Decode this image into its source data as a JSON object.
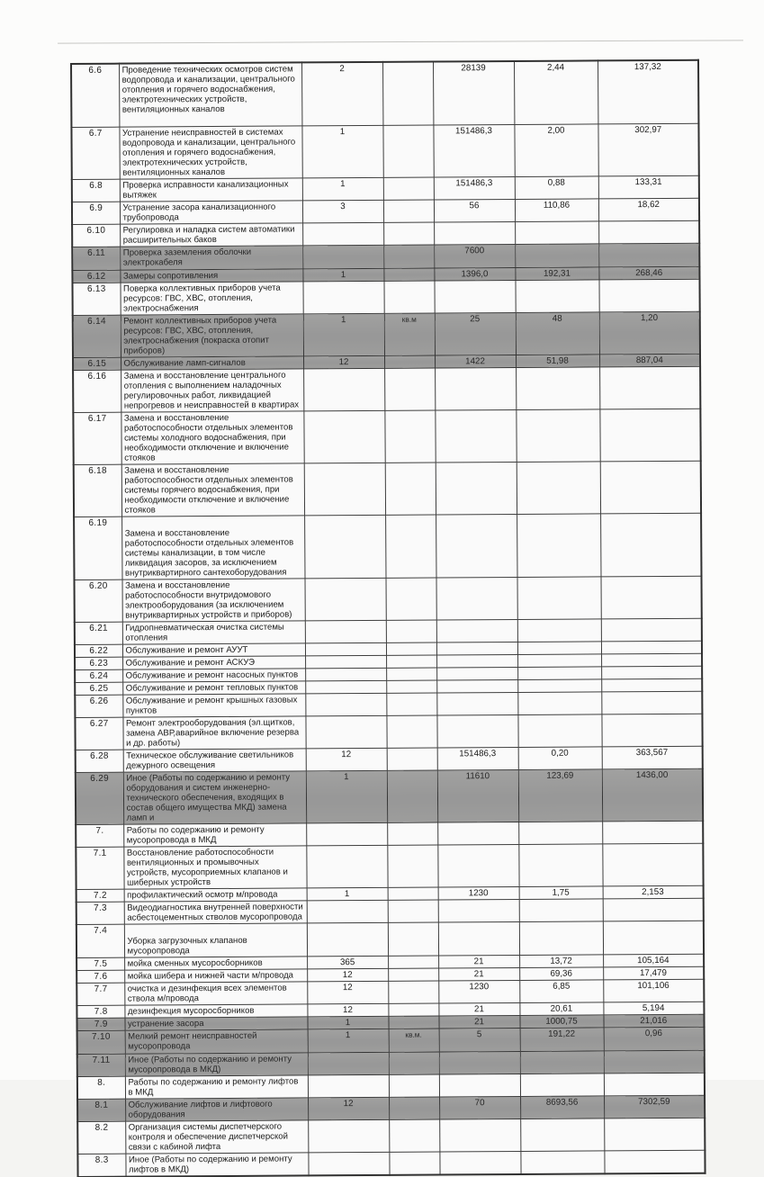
{
  "document_type": "scanned maintenance works table (МКД)",
  "colors": {
    "highlight_row": "#9c9c9c",
    "border": "#3d3d3d",
    "text": "#181818",
    "page": "#fcfcfb"
  },
  "table": {
    "columns": [
      "num",
      "desc",
      "qty",
      "unit",
      "volume",
      "rate",
      "total"
    ],
    "rows": [
      {
        "num": "6.6",
        "desc": "Проведение технических осмотров систем водопровода и канализации, центрального отопления и горячего водоснабжения, электротехнических устройств, вентиляционных каналов",
        "qty": "2",
        "unit": "",
        "volume": "28139",
        "rate": "2,44",
        "total": "137,32",
        "gray": false,
        "height": 70
      },
      {
        "num": "6.7",
        "desc": "Устранение неисправностей в системах водопровода и канализации, центрального отопления и горячего водоснабжения, электротехнических устройств, вентиляционных каналов",
        "qty": "1",
        "unit": "",
        "volume": "151486,3",
        "rate": "2,00",
        "total": "302,97",
        "gray": false,
        "height": 56
      },
      {
        "num": "6.8",
        "desc": "Проверка исправности канализационных вытяжек",
        "qty": "1",
        "unit": "",
        "volume": "151486,3",
        "rate": "0,88",
        "total": "133,31",
        "gray": false,
        "height": 23
      },
      {
        "num": "6.9",
        "desc": "Устранение засора канализационного трубопровода",
        "qty": "3",
        "unit": "",
        "volume": "56",
        "rate": "110,86",
        "total": "18,62",
        "gray": false,
        "height": 23
      },
      {
        "num": "6.10",
        "desc": "Регулировка и наладка систем автоматики расширительных баков",
        "qty": "",
        "unit": "",
        "volume": "",
        "rate": "",
        "total": "",
        "gray": false,
        "height": 23
      },
      {
        "num": "6.11",
        "desc": "Проверка заземления оболочки электрокабеля",
        "qty": "",
        "unit": "",
        "volume": "7600",
        "rate": "",
        "total": "",
        "gray": true,
        "height": 24,
        "desc_style": "desc-bottom"
      },
      {
        "num": "6.12",
        "desc": "Замеры сопротивления",
        "qty": "1",
        "unit": "",
        "volume": "1396,0",
        "rate": "192,31",
        "total": "268,46",
        "gray": true,
        "height": 12
      },
      {
        "num": "6.13",
        "desc": "Поверка коллективных приборов учета ресурсов: ГВС, ХВС, отопления, электроснабжения",
        "qty": "",
        "unit": "",
        "volume": "",
        "rate": "",
        "total": "",
        "gray": false,
        "height": 34
      },
      {
        "num": "6.14",
        "desc": "Ремонт коллективных приборов учета ресурсов: ГВС, ХВС, отопления, электроснабжения (покраска отопит приборов)",
        "qty": "1",
        "unit": "кв.м",
        "volume": "25",
        "rate": "48",
        "total": "1,20",
        "gray": true,
        "height": 34
      },
      {
        "num": "6.15",
        "desc": "Обслуживание ламп-сигналов",
        "qty": "12",
        "unit": "",
        "volume": "1422",
        "rate": "51,98",
        "total": "887,04",
        "gray": true,
        "height": 12
      },
      {
        "num": "6.16",
        "desc": "Замена и восстановление центрального отопления с выполнением наладочных регулировочных работ, ликвидацией непрогревов и неисправностей в квартирах",
        "qty": "",
        "unit": "",
        "volume": "",
        "rate": "",
        "total": "",
        "gray": false,
        "height": 45
      },
      {
        "num": "6.17",
        "desc": "Замена и восстановление работоспособности отдельных элементов системы холодного водоснабжения, при необходимости отключение и включение стояков",
        "qty": "",
        "unit": "",
        "volume": "",
        "rate": "",
        "total": "",
        "gray": false,
        "height": 45
      },
      {
        "num": "6.18",
        "desc": "Замена и восстановление работоспособности отдельных элементов системы горячего водоснабжения, при необходимости отключение и включение стояков",
        "qty": "",
        "unit": "",
        "volume": "",
        "rate": "",
        "total": "",
        "gray": false,
        "height": 45
      },
      {
        "num": "6.19",
        "desc": "Замена и восстановление работоспособности отдельных элементов системы канализации, в том числе ликвидация засоров, за исключением внутриквартирного сантехоборудования",
        "qty": "",
        "unit": "",
        "volume": "",
        "rate": "",
        "total": "",
        "gray": false,
        "height": 56,
        "desc_style": "desc-padtop"
      },
      {
        "num": "6.20",
        "desc": "Замена и восстановление работоспособности внутридомового электрооборудования (за исключением внутриквартирных устройств и приборов)",
        "qty": "",
        "unit": "",
        "volume": "",
        "rate": "",
        "total": "",
        "gray": false,
        "height": 45
      },
      {
        "num": "6.21",
        "desc": "Гидропневматическая очистка системы отопления",
        "qty": "",
        "unit": "",
        "volume": "",
        "rate": "",
        "total": "",
        "gray": false,
        "height": 23
      },
      {
        "num": "6.22",
        "desc": "Обслуживание и ремонт АУУТ",
        "qty": "",
        "unit": "",
        "volume": "",
        "rate": "",
        "total": "",
        "gray": false,
        "height": 12
      },
      {
        "num": "6.23",
        "desc": "Обслуживание и ремонт АСКУЭ",
        "qty": "",
        "unit": "",
        "volume": "",
        "rate": "",
        "total": "",
        "gray": false,
        "height": 12
      },
      {
        "num": "6.24",
        "desc": "Обслуживание и ремонт насосных пунктов",
        "qty": "",
        "unit": "",
        "volume": "",
        "rate": "",
        "total": "",
        "gray": false,
        "height": 12
      },
      {
        "num": "6.25",
        "desc": "Обслуживание и ремонт тепловых пунктов",
        "qty": "",
        "unit": "",
        "volume": "",
        "rate": "",
        "total": "",
        "gray": false,
        "height": 12
      },
      {
        "num": "6.26",
        "desc": "Обслуживание и ремонт крышных газовых пунктов",
        "qty": "",
        "unit": "",
        "volume": "",
        "rate": "",
        "total": "",
        "gray": false,
        "height": 23
      },
      {
        "num": "6.27",
        "desc": "Ремонт электрооборудования (эл.щитков, замена АВР,аварийное включение резерва и др. работы)",
        "qty": "",
        "unit": "",
        "volume": "",
        "rate": "",
        "total": "",
        "gray": false,
        "height": 34
      },
      {
        "num": "6.28",
        "desc": "Техническое обслуживание светильников дежурного освещения",
        "qty": "12",
        "unit": "",
        "volume": "151486,3",
        "rate": "0,20",
        "total": "363,567",
        "gray": false,
        "height": 23
      },
      {
        "num": "6.29",
        "desc": "Иное (Работы по содержанию и ремонту оборудования и систем инженерно-технического обеспечения, входящих в состав общего имущества МКД) замена ламп и",
        "qty": "1",
        "unit": "",
        "volume": "11610",
        "rate": "123,69",
        "total": "1436,00",
        "gray": true,
        "height": 48
      },
      {
        "num": "7.",
        "desc": "Работы по содержанию и ремонту мусоропровода в МКД",
        "qty": "",
        "unit": "",
        "volume": "",
        "rate": "",
        "total": "",
        "gray": false,
        "height": 23
      },
      {
        "num": "7.1",
        "desc": "Восстановление работоспособности вентиляционных и промывочных устройств, мусороприемных клапанов и шиберных устройств",
        "qty": "",
        "unit": "",
        "volume": "",
        "rate": "",
        "total": "",
        "gray": false,
        "height": 45
      },
      {
        "num": "7.2",
        "desc": "профилактический осмотр м/провода",
        "qty": "1",
        "unit": "",
        "volume": "1230",
        "rate": "1,75",
        "total": "2,153",
        "gray": false,
        "height": 12
      },
      {
        "num": "7.3",
        "desc": "Видеодиагностика внутренней поверхности асбестоцементных стволов мусоропровода",
        "qty": "",
        "unit": "",
        "volume": "",
        "rate": "",
        "total": "",
        "gray": false,
        "height": 23
      },
      {
        "num": "7.4",
        "desc": "Уборка загрузочных клапанов  мусоропровода",
        "qty": "",
        "unit": "",
        "volume": "",
        "rate": "",
        "total": "",
        "gray": false,
        "height": 28,
        "desc_style": "desc-padtop"
      },
      {
        "num": "7.5",
        "desc": "мойка сменных мусоросборников",
        "qty": "365",
        "unit": "",
        "volume": "21",
        "rate": "13,72",
        "total": "105,164",
        "gray": false,
        "height": 12
      },
      {
        "num": "7.6",
        "desc": "мойка шибера и нижней части м/провода",
        "qty": "12",
        "unit": "",
        "volume": "21",
        "rate": "69,36",
        "total": "17,479",
        "gray": false,
        "height": 12
      },
      {
        "num": "7.7",
        "desc": "очистка и дезинфекция всех элементов ствола м/провода",
        "qty": "12",
        "unit": "",
        "volume": "1230",
        "rate": "6,85",
        "total": "101,106",
        "gray": false,
        "height": 23
      },
      {
        "num": "7.8",
        "desc": "дезинфекция мусоросборников",
        "qty": "12",
        "unit": "",
        "volume": "21",
        "rate": "20,61",
        "total": "5,194",
        "gray": false,
        "height": 12
      },
      {
        "num": "7.9",
        "desc": "устранение засора",
        "qty": "1",
        "unit": "",
        "volume": "21",
        "rate": "1000,75",
        "total": "21,016",
        "gray": true,
        "height": 12
      },
      {
        "num": "7.10",
        "desc": "Мелкий ремонт неисправностей мусоропровода",
        "qty": "1",
        "unit": "кв.м.",
        "volume": "5",
        "rate": "191,22",
        "total": "0,96",
        "gray": true,
        "height": 26,
        "desc_style": "desc-bottom"
      },
      {
        "num": "7.11",
        "desc": "Иное (Работы по содержанию и ремонту мусоропровода в МКД)",
        "qty": "",
        "unit": "",
        "volume": "",
        "rate": "",
        "total": "",
        "gray": true,
        "height": 24
      },
      {
        "num": "8.",
        "desc": "Работы по содержанию и ремонту лифтов в МКД",
        "qty": "",
        "unit": "",
        "volume": "",
        "rate": "",
        "total": "",
        "gray": false,
        "height": 23
      },
      {
        "num": "8.1",
        "desc": "Обслуживание лифтов и лифтового оборудования",
        "qty": "12",
        "unit": "",
        "volume": "70",
        "rate": "8693,56",
        "total": "7302,59",
        "gray": true,
        "height": 25
      },
      {
        "num": "8.2",
        "desc": "Организация системы диспетчерского контроля и обеспечение диспетчерской связи с кабиной лифта",
        "qty": "",
        "unit": "",
        "volume": "",
        "rate": "",
        "total": "",
        "gray": false,
        "height": 34
      },
      {
        "num": "8.3",
        "desc": "Иное (Работы по содержанию и ремонту лифтов в МКД)",
        "qty": "",
        "unit": "",
        "volume": "",
        "rate": "",
        "total": "",
        "gray": false,
        "height": 23
      }
    ]
  }
}
